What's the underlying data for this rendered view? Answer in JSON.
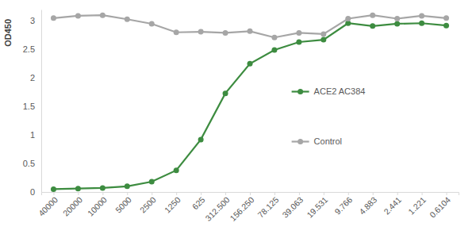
{
  "chart_data": {
    "type": "line",
    "y_label": "OD450",
    "categories": [
      "40000",
      "20000",
      "10000",
      "5000",
      "2500",
      "1250",
      "625",
      "312.500",
      "156.250",
      "78.125",
      "39.063",
      "19.531",
      "9.766",
      "4.883",
      "2.441",
      "1.221",
      "0.6104"
    ],
    "series": [
      {
        "name": "ACE2 AC384",
        "color": "#3d8c40",
        "marker": "circle",
        "line_style": "solid",
        "values": [
          0.05,
          0.06,
          0.07,
          0.1,
          0.18,
          0.38,
          0.92,
          1.73,
          2.25,
          2.49,
          2.63,
          2.67,
          2.96,
          2.91,
          2.95,
          2.96,
          2.92
        ]
      },
      {
        "name": "Control",
        "color": "#a6a6a6",
        "marker": "circle",
        "line_style": "solid",
        "values": [
          3.05,
          3.09,
          3.1,
          3.03,
          2.95,
          2.8,
          2.81,
          2.79,
          2.82,
          2.71,
          2.79,
          2.77,
          3.04,
          3.1,
          3.04,
          3.09,
          3.05
        ]
      }
    ],
    "ylim": [
      0,
      3.2
    ],
    "yticks": [
      0,
      0.5,
      1,
      1.5,
      2,
      2.5,
      3
    ],
    "grid": false,
    "legend": "right"
  }
}
